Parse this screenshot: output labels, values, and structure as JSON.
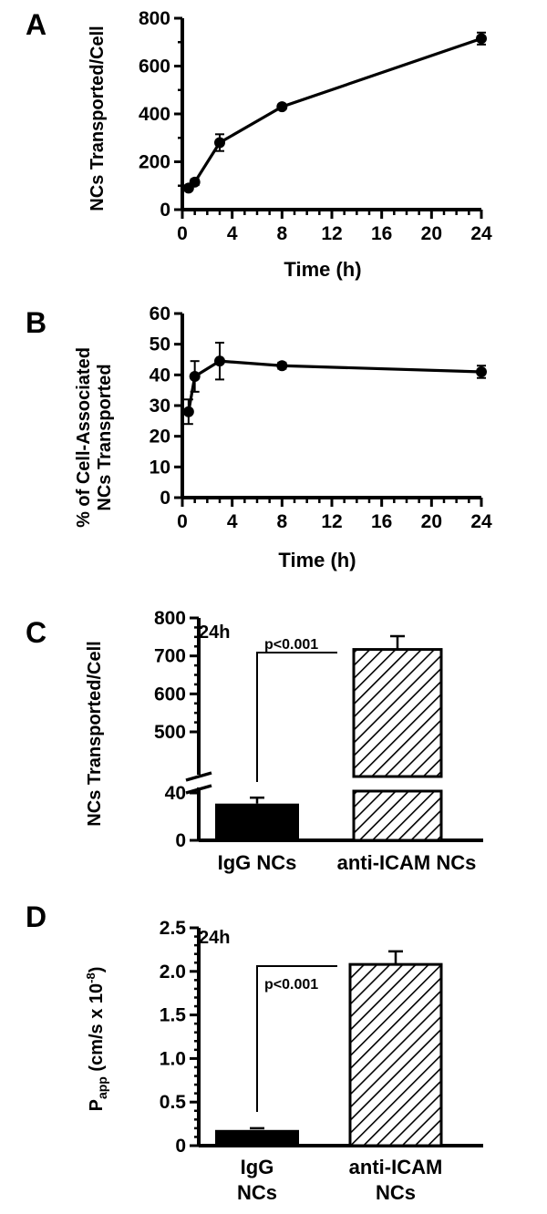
{
  "panels": {
    "A": {
      "letter": "A"
    },
    "B": {
      "letter": "B"
    },
    "C": {
      "letter": "C",
      "time_note": "24h",
      "pvalue": "p<0.001"
    },
    "D": {
      "letter": "D",
      "time_note": "24h",
      "pvalue": "p<0.001",
      "ylabel_main": "P",
      "ylabel_sub": "app",
      "ylabel_rest": " (cm/s x 10",
      "ylabel_exp": "-8",
      "ylabel_end": ")"
    }
  },
  "chart_data": [
    {
      "panel": "A",
      "type": "line",
      "xlabel": "Time (h)",
      "ylabel": "NCs Transported/Cell",
      "xlim": [
        0,
        24
      ],
      "ylim": [
        0,
        800
      ],
      "xticks": [
        0,
        4,
        8,
        12,
        16,
        20,
        24
      ],
      "yticks": [
        0,
        200,
        400,
        600,
        800
      ],
      "series": [
        {
          "x": [
            0.5,
            1,
            3,
            8,
            24
          ],
          "y": [
            90,
            115,
            280,
            430,
            715
          ],
          "err": [
            10,
            12,
            35,
            10,
            25
          ]
        }
      ]
    },
    {
      "panel": "B",
      "type": "line",
      "xlabel": "Time (h)",
      "ylabel": [
        "% of Cell-Associated",
        "NCs Transported"
      ],
      "xlim": [
        0,
        24
      ],
      "ylim": [
        0,
        60
      ],
      "xticks": [
        0,
        4,
        8,
        12,
        16,
        20,
        24
      ],
      "yticks": [
        0,
        10,
        20,
        30,
        40,
        50,
        60
      ],
      "series": [
        {
          "x": [
            0.5,
            1,
            3,
            8,
            24
          ],
          "y": [
            28,
            39.5,
            44.5,
            43,
            41
          ],
          "err": [
            4,
            5,
            6,
            1,
            2
          ]
        }
      ]
    },
    {
      "panel": "C",
      "type": "bar",
      "ylabel": "NCs Transported/Cell",
      "categories": [
        "IgG NCs",
        "anti-ICAM NCs"
      ],
      "values": [
        31,
        717
      ],
      "err": [
        5,
        35
      ],
      "yticks_lower": [
        0,
        40
      ],
      "yticks_upper": [
        500,
        600,
        700,
        800
      ],
      "axis_break": [
        40,
        450
      ]
    },
    {
      "panel": "D",
      "type": "bar",
      "categories": [
        [
          "IgG",
          "NCs"
        ],
        [
          "anti-ICAM",
          "NCs"
        ]
      ],
      "values": [
        0.18,
        2.08
      ],
      "err": [
        0.02,
        0.15
      ],
      "ylim": [
        0,
        2.5
      ],
      "yticks": [
        "0",
        "0.5",
        "1.0",
        "1.5",
        "2.0",
        "2.5"
      ]
    }
  ]
}
